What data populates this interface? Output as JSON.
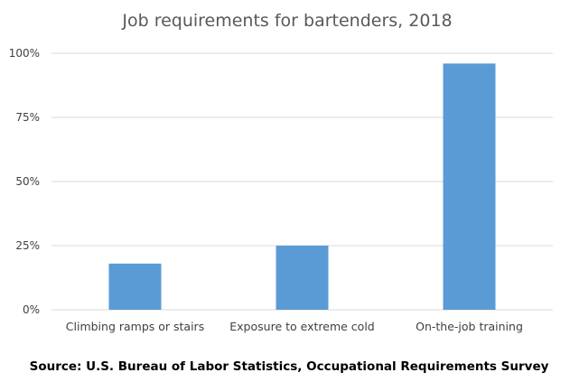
{
  "chart_data": {
    "type": "bar",
    "title": "Job requirements for bartenders, 2018",
    "categories": [
      "Climbing ramps or stairs",
      "Exposure to extreme cold",
      "On-the-job training"
    ],
    "values": [
      18,
      25,
      96
    ],
    "unit": "%",
    "ylim": [
      0,
      100
    ],
    "yticks": [
      0,
      25,
      50,
      75,
      100
    ],
    "ytick_labels": [
      "0%",
      "25%",
      "50%",
      "75%",
      "100%"
    ],
    "xlabel": "",
    "ylabel": "",
    "grid": true,
    "legend": "none",
    "bar_color": "#5b9bd5",
    "source": "Source: U.S. Bureau of Labor Statistics, Occupational Requirements Survey"
  }
}
